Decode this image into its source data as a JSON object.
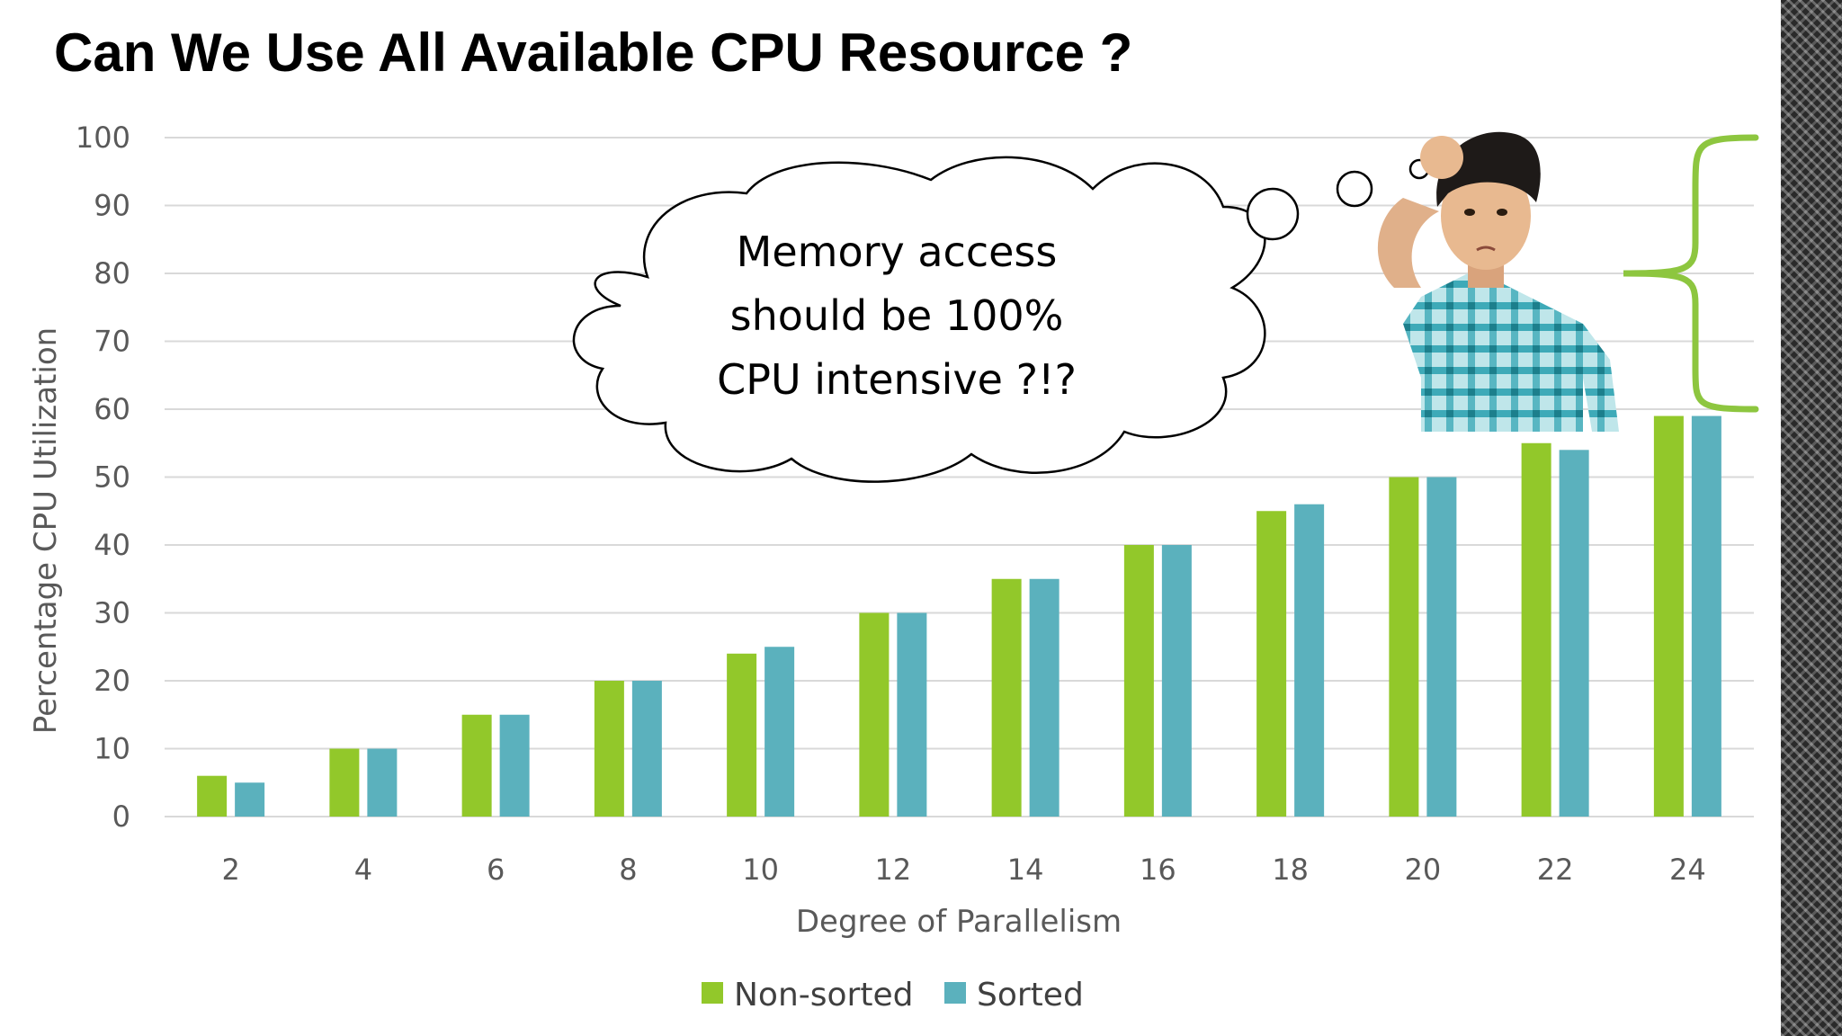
{
  "slide": {
    "title": "Can We Use All Available CPU Resource ?",
    "thought_bubble": {
      "lines": [
        "Memory access",
        "should be 100%",
        "CPU intensive ?!?"
      ]
    },
    "brace_color": "#8dc63f",
    "image": "confused-boy-scratching-head"
  },
  "chart_data": {
    "type": "bar",
    "categories": [
      "2",
      "4",
      "6",
      "8",
      "10",
      "12",
      "14",
      "16",
      "18",
      "20",
      "22",
      "24"
    ],
    "series": [
      {
        "name": "Non-sorted",
        "color": "#92c82a",
        "values": [
          6,
          10,
          15,
          20,
          24,
          30,
          35,
          40,
          45,
          50,
          55,
          59
        ]
      },
      {
        "name": "Sorted",
        "color": "#5bb1bd",
        "values": [
          5,
          10,
          15,
          20,
          25,
          30,
          35,
          40,
          46,
          50,
          54,
          59
        ]
      }
    ],
    "xlabel": "Degree of Parallelism",
    "ylabel": "Percentage CPU Utilization",
    "ylim": [
      0,
      100
    ],
    "yticks": [
      "0",
      "10",
      "20",
      "30",
      "40",
      "50",
      "60",
      "70",
      "80",
      "90",
      "100"
    ],
    "grid": true,
    "legend": "bottom"
  }
}
